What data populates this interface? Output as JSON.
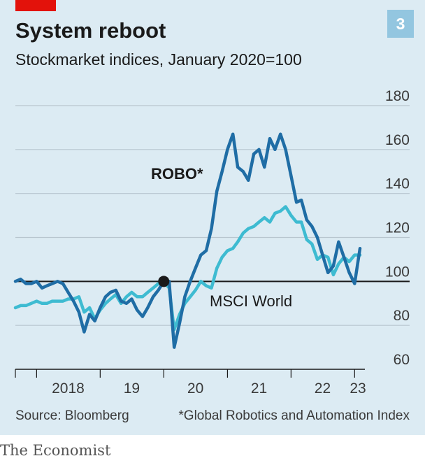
{
  "page": {
    "badge": "3",
    "brand": "The Economist"
  },
  "colors": {
    "background": "#dcebf3",
    "accent_red": "#e3120b",
    "robo": "#1f6da5",
    "msci": "#3ebbd1",
    "grid": "#b8c6cf",
    "baseline": "#1a1a1a"
  },
  "chart_data": {
    "type": "line",
    "title": "System reboot",
    "subtitle": "Stockmarket indices, January 2020=100",
    "source": "Source: Bloomberg",
    "footnote": "*Global Robotics and Automation Index",
    "y_axis": {
      "ylim": [
        60,
        180
      ],
      "ticks": [
        60,
        80,
        100,
        120,
        140,
        160,
        180
      ],
      "position": "right",
      "reference_line": 100
    },
    "x_axis": {
      "xlim": [
        "2017-09-01",
        "2023-03-01"
      ],
      "year_ticks": [
        "2018-01-01",
        "2019-01-01",
        "2020-01-01",
        "2021-01-01",
        "2022-01-01",
        "2023-01-01"
      ],
      "tick_labels": [
        {
          "label": "2018",
          "date": "2018-07-01"
        },
        {
          "label": "19",
          "date": "2019-07-01"
        },
        {
          "label": "20",
          "date": "2020-07-01"
        },
        {
          "label": "21",
          "date": "2021-07-01"
        },
        {
          "label": "22",
          "date": "2022-07-01"
        },
        {
          "label": "23",
          "date": "2023-01-20"
        }
      ]
    },
    "grid": true,
    "marker": {
      "date": "2020-01-01",
      "value": 100,
      "shape": "circle"
    },
    "series": [
      {
        "name": "ROBO*",
        "x": [
          "2017-09-01",
          "2017-10-01",
          "2017-11-01",
          "2017-12-01",
          "2018-01-01",
          "2018-02-01",
          "2018-03-01",
          "2018-04-01",
          "2018-05-01",
          "2018-06-01",
          "2018-07-01",
          "2018-08-01",
          "2018-09-01",
          "2018-10-01",
          "2018-11-01",
          "2018-12-01",
          "2019-01-01",
          "2019-02-01",
          "2019-03-01",
          "2019-04-01",
          "2019-05-01",
          "2019-06-01",
          "2019-07-01",
          "2019-08-01",
          "2019-09-01",
          "2019-10-01",
          "2019-11-01",
          "2019-12-01",
          "2020-01-01",
          "2020-02-01",
          "2020-03-01",
          "2020-04-01",
          "2020-05-01",
          "2020-06-01",
          "2020-07-01",
          "2020-08-01",
          "2020-09-01",
          "2020-10-01",
          "2020-11-01",
          "2020-12-01",
          "2021-01-01",
          "2021-02-01",
          "2021-03-01",
          "2021-04-01",
          "2021-05-01",
          "2021-06-01",
          "2021-07-01",
          "2021-08-01",
          "2021-09-01",
          "2021-10-01",
          "2021-11-01",
          "2021-12-01",
          "2022-01-01",
          "2022-02-01",
          "2022-03-01",
          "2022-04-01",
          "2022-05-01",
          "2022-06-01",
          "2022-07-01",
          "2022-08-01",
          "2022-09-01",
          "2022-10-01",
          "2022-11-01",
          "2022-12-01",
          "2023-01-01",
          "2023-02-01"
        ],
        "values": [
          100,
          101,
          99,
          99,
          100,
          97,
          98,
          99,
          100,
          99,
          95,
          91,
          86,
          77,
          85,
          82,
          88,
          93,
          95,
          96,
          91,
          90,
          92,
          87,
          84,
          88,
          93,
          96,
          100,
          100,
          70,
          81,
          93,
          100,
          106,
          112,
          114,
          124,
          141,
          150,
          160,
          167,
          152,
          150,
          146,
          158,
          160,
          152,
          165,
          160,
          167,
          160,
          148,
          136,
          137,
          128,
          125,
          120,
          112,
          104,
          107,
          118,
          111,
          104,
          99,
          115
        ]
      },
      {
        "name": "MSCI World",
        "x": [
          "2017-09-01",
          "2017-10-01",
          "2017-11-01",
          "2017-12-01",
          "2018-01-01",
          "2018-02-01",
          "2018-03-01",
          "2018-04-01",
          "2018-05-01",
          "2018-06-01",
          "2018-07-01",
          "2018-08-01",
          "2018-09-01",
          "2018-10-01",
          "2018-11-01",
          "2018-12-01",
          "2019-01-01",
          "2019-02-01",
          "2019-03-01",
          "2019-04-01",
          "2019-05-01",
          "2019-06-01",
          "2019-07-01",
          "2019-08-01",
          "2019-09-01",
          "2019-10-01",
          "2019-11-01",
          "2019-12-01",
          "2020-01-01",
          "2020-02-01",
          "2020-03-01",
          "2020-04-01",
          "2020-05-01",
          "2020-06-01",
          "2020-07-01",
          "2020-08-01",
          "2020-09-01",
          "2020-10-01",
          "2020-11-01",
          "2020-12-01",
          "2021-01-01",
          "2021-02-01",
          "2021-03-01",
          "2021-04-01",
          "2021-05-01",
          "2021-06-01",
          "2021-07-01",
          "2021-08-01",
          "2021-09-01",
          "2021-10-01",
          "2021-11-01",
          "2021-12-01",
          "2022-01-01",
          "2022-02-01",
          "2022-03-01",
          "2022-04-01",
          "2022-05-01",
          "2022-06-01",
          "2022-07-01",
          "2022-08-01",
          "2022-09-01",
          "2022-10-01",
          "2022-11-01",
          "2022-12-01",
          "2023-01-01",
          "2023-02-01"
        ],
        "values": [
          88,
          89,
          89,
          90,
          91,
          90,
          90,
          91,
          91,
          91,
          92,
          92,
          93,
          86,
          88,
          83,
          87,
          90,
          92,
          94,
          90,
          93,
          95,
          93,
          93,
          95,
          97,
          99,
          100,
          97,
          78,
          85,
          90,
          93,
          96,
          100,
          98,
          97,
          106,
          111,
          114,
          115,
          118,
          122,
          124,
          125,
          127,
          129,
          127,
          131,
          132,
          134,
          130,
          127,
          127,
          119,
          117,
          110,
          112,
          111,
          103,
          108,
          111,
          109,
          112,
          112
        ]
      }
    ]
  }
}
